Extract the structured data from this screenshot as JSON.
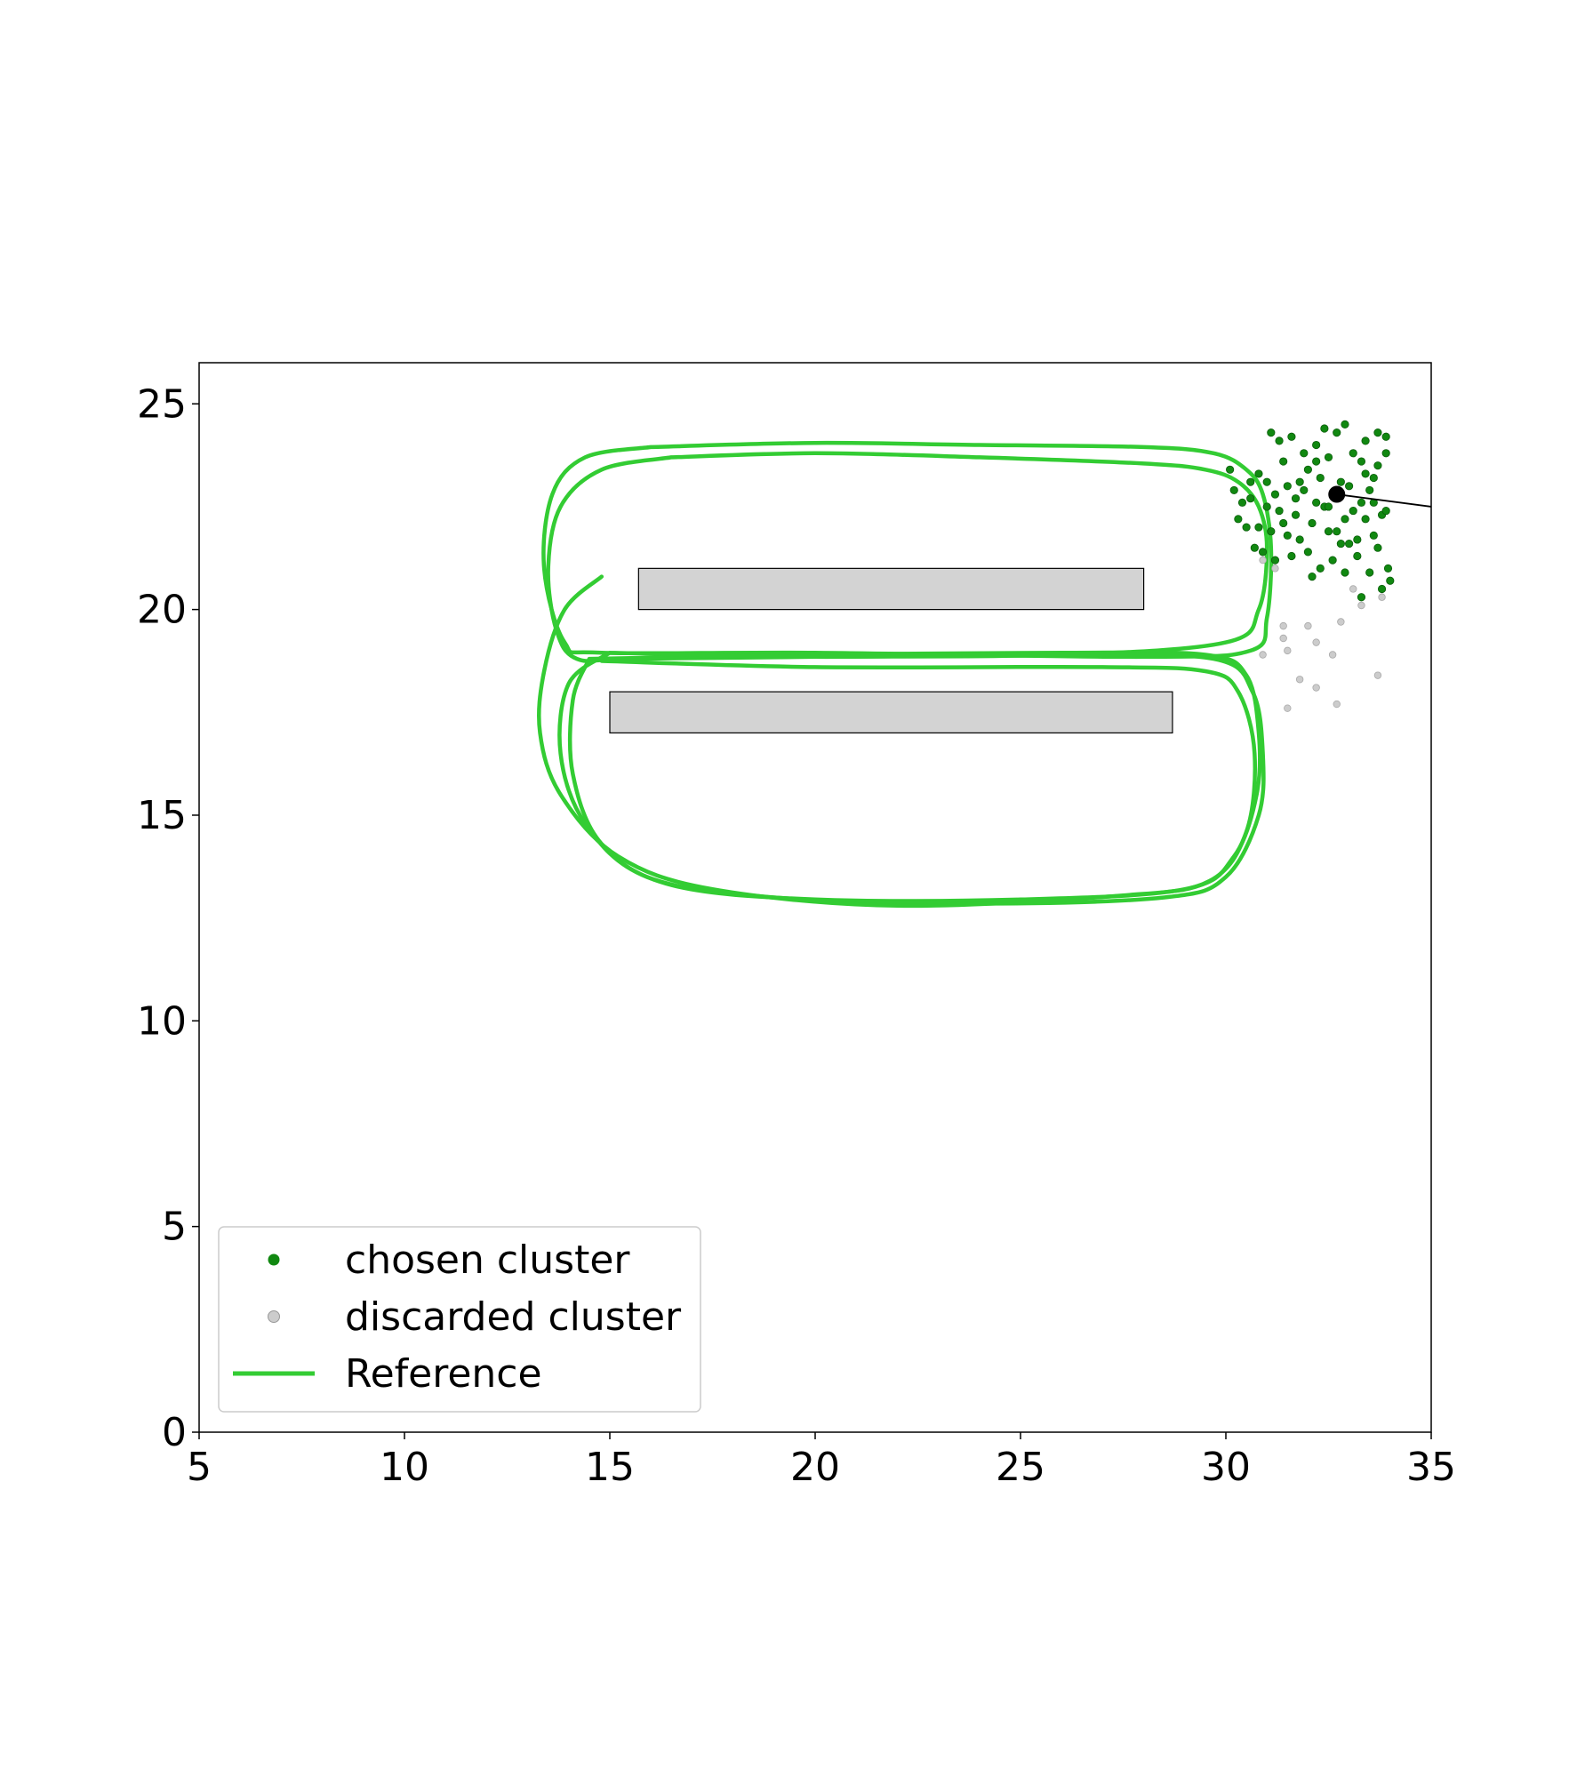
{
  "chart_data": {
    "type": "scatter",
    "title": "",
    "xlabel": "",
    "ylabel": "",
    "xlim": [
      5,
      35
    ],
    "ylim": [
      0,
      26
    ],
    "grid": false,
    "legend_placement": "lower-left",
    "x_ticks": [
      {
        "value": 5,
        "label": "5"
      },
      {
        "value": 10,
        "label": "10"
      },
      {
        "value": 15,
        "label": "15"
      },
      {
        "value": 20,
        "label": "20"
      },
      {
        "value": 25,
        "label": "25"
      },
      {
        "value": 30,
        "label": "30"
      },
      {
        "value": 35,
        "label": "35"
      }
    ],
    "y_ticks": [
      {
        "value": 0,
        "label": "0"
      },
      {
        "value": 5,
        "label": "5"
      },
      {
        "value": 10,
        "label": "10"
      },
      {
        "value": 15,
        "label": "15"
      },
      {
        "value": 20,
        "label": "20"
      },
      {
        "value": 25,
        "label": "25"
      }
    ],
    "obstacles": [
      {
        "x0": 15.7,
        "x1": 28.0,
        "y0": 20.0,
        "y1": 21.0,
        "color": "#d3d3d3"
      },
      {
        "x0": 15.0,
        "x1": 28.7,
        "y0": 17.0,
        "y1": 18.0,
        "color": "#d3d3d3"
      }
    ],
    "legend": [
      {
        "label": "chosen cluster",
        "marker": "dot",
        "color": "#118811"
      },
      {
        "label": "discarded cluster",
        "marker": "dot",
        "color": "#cccccc"
      },
      {
        "label": "Reference",
        "marker": "line",
        "color": "#33cc33"
      }
    ],
    "series": [
      {
        "name": "Reference",
        "kind": "line",
        "color": "#33cc33",
        "laps": [
          [
            [
              16.5,
              23.7
            ],
            [
              20,
              23.8
            ],
            [
              24,
              23.7
            ],
            [
              28,
              23.55
            ],
            [
              29.5,
              23.4
            ],
            [
              30.3,
              23.1
            ],
            [
              30.8,
              22.5
            ],
            [
              31.0,
              21.5
            ],
            [
              30.8,
              20.0
            ],
            [
              30.0,
              19.2
            ],
            [
              26,
              18.9
            ],
            [
              20,
              18.85
            ],
            [
              15.5,
              18.8
            ],
            [
              14.2,
              18.8
            ],
            [
              13.7,
              19.5
            ],
            [
              13.5,
              21.0
            ],
            [
              13.8,
              22.5
            ],
            [
              14.8,
              23.4
            ],
            [
              16.5,
              23.7
            ]
          ],
          [
            [
              16,
              23.95
            ],
            [
              20,
              24.05
            ],
            [
              24,
              24.0
            ],
            [
              28,
              23.95
            ],
            [
              29.7,
              23.8
            ],
            [
              30.5,
              23.4
            ],
            [
              30.9,
              22.8
            ],
            [
              31.1,
              21.5
            ],
            [
              31.0,
              19.8
            ],
            [
              30.6,
              19.0
            ],
            [
              28,
              18.85
            ],
            [
              20,
              18.95
            ],
            [
              14.8,
              18.95
            ],
            [
              13.9,
              19.2
            ],
            [
              13.4,
              21.0
            ],
            [
              13.6,
              22.8
            ],
            [
              14.4,
              23.7
            ],
            [
              16,
              23.95
            ]
          ],
          [
            [
              14.5,
              18.8
            ],
            [
              20,
              18.9
            ],
            [
              26,
              18.95
            ],
            [
              29.5,
              18.9
            ],
            [
              30.5,
              18.4
            ],
            [
              30.8,
              17.0
            ],
            [
              30.75,
              15.5
            ],
            [
              30.2,
              14.0
            ],
            [
              29.0,
              13.2
            ],
            [
              25,
              12.95
            ],
            [
              20,
              12.95
            ],
            [
              16.5,
              13.3
            ],
            [
              14.8,
              14.3
            ],
            [
              14.1,
              16.0
            ],
            [
              14.1,
              17.8
            ],
            [
              14.5,
              18.8
            ]
          ],
          [
            [
              15,
              18.95
            ],
            [
              20,
              18.85
            ],
            [
              26,
              18.9
            ],
            [
              29.7,
              18.8
            ],
            [
              30.65,
              18.0
            ],
            [
              30.9,
              16.5
            ],
            [
              30.8,
              15.0
            ],
            [
              30.0,
              13.5
            ],
            [
              28.5,
              13.0
            ],
            [
              24,
              12.85
            ],
            [
              19,
              13.0
            ],
            [
              15.9,
              13.5
            ],
            [
              14.4,
              14.8
            ],
            [
              13.8,
              16.5
            ],
            [
              14.0,
              18.2
            ],
            [
              15,
              18.95
            ]
          ],
          [
            [
              14.8,
              18.75
            ],
            [
              20,
              18.6
            ],
            [
              27,
              18.6
            ],
            [
              29.5,
              18.5
            ],
            [
              30.3,
              18.0
            ],
            [
              30.7,
              16.5
            ],
            [
              30.5,
              14.6
            ],
            [
              29.6,
              13.4
            ],
            [
              27.5,
              13.05
            ],
            [
              22,
              12.8
            ],
            [
              17.5,
              13.2
            ],
            [
              15.2,
              14.0
            ],
            [
              13.8,
              15.5
            ],
            [
              13.3,
              17.0
            ],
            [
              13.4,
              18.5
            ],
            [
              13.9,
              20.0
            ],
            [
              14.8,
              20.8
            ]
          ]
        ]
      },
      {
        "name": "chosen cluster",
        "kind": "points",
        "color": "#118811",
        "points": [
          [
            30.1,
            23.4
          ],
          [
            30.2,
            22.9
          ],
          [
            30.4,
            22.6
          ],
          [
            30.3,
            22.2
          ],
          [
            30.6,
            22.7
          ],
          [
            30.8,
            23.3
          ],
          [
            31.0,
            22.5
          ],
          [
            31.2,
            22.8
          ],
          [
            31.1,
            21.9
          ],
          [
            31.3,
            22.4
          ],
          [
            31.5,
            23.0
          ],
          [
            31.4,
            23.6
          ],
          [
            31.6,
            24.2
          ],
          [
            31.7,
            22.3
          ],
          [
            31.8,
            21.7
          ],
          [
            31.9,
            22.9
          ],
          [
            32.0,
            23.4
          ],
          [
            32.1,
            22.1
          ],
          [
            32.2,
            24.0
          ],
          [
            32.3,
            23.2
          ],
          [
            32.4,
            22.5
          ],
          [
            32.5,
            21.9
          ],
          [
            32.5,
            23.7
          ],
          [
            32.6,
            22.8
          ],
          [
            32.7,
            24.3
          ],
          [
            32.8,
            21.6
          ],
          [
            32.9,
            22.2
          ],
          [
            33.0,
            23.0
          ],
          [
            33.1,
            23.8
          ],
          [
            33.2,
            21.3
          ],
          [
            33.3,
            22.6
          ],
          [
            33.4,
            24.1
          ],
          [
            33.5,
            22.9
          ],
          [
            33.6,
            21.8
          ],
          [
            33.7,
            23.5
          ],
          [
            33.8,
            22.3
          ],
          [
            33.9,
            24.2
          ],
          [
            33.95,
            21.0
          ],
          [
            33.7,
            24.3
          ],
          [
            33.4,
            23.3
          ],
          [
            33.1,
            22.4
          ],
          [
            32.8,
            23.1
          ],
          [
            32.6,
            21.2
          ],
          [
            32.3,
            21.0
          ],
          [
            32.0,
            21.4
          ],
          [
            31.7,
            22.7
          ],
          [
            31.5,
            21.8
          ],
          [
            31.2,
            21.2
          ],
          [
            30.9,
            21.4
          ],
          [
            30.6,
            23.1
          ],
          [
            31.3,
            24.1
          ],
          [
            31.9,
            23.8
          ],
          [
            32.4,
            24.4
          ],
          [
            32.9,
            24.5
          ],
          [
            33.3,
            23.6
          ],
          [
            33.6,
            22.6
          ],
          [
            33.9,
            23.8
          ],
          [
            34.0,
            20.7
          ],
          [
            33.8,
            20.5
          ],
          [
            33.5,
            20.9
          ],
          [
            33.2,
            21.7
          ],
          [
            32.7,
            21.9
          ],
          [
            32.2,
            22.6
          ],
          [
            31.8,
            23.1
          ],
          [
            31.4,
            22.1
          ],
          [
            31.0,
            23.1
          ],
          [
            30.5,
            22.0
          ],
          [
            30.7,
            21.5
          ],
          [
            31.6,
            21.3
          ],
          [
            32.1,
            20.8
          ],
          [
            32.9,
            20.9
          ],
          [
            33.3,
            20.3
          ],
          [
            33.0,
            21.6
          ],
          [
            32.5,
            22.5
          ],
          [
            32.2,
            23.6
          ],
          [
            33.6,
            23.2
          ],
          [
            33.9,
            22.4
          ],
          [
            33.7,
            21.5
          ],
          [
            33.4,
            22.2
          ],
          [
            31.1,
            24.3
          ],
          [
            30.8,
            22.0
          ]
        ]
      },
      {
        "name": "discarded cluster",
        "kind": "points",
        "color": "#cccccc",
        "points": [
          [
            30.9,
            21.2
          ],
          [
            31.2,
            21.0
          ],
          [
            31.4,
            19.6
          ],
          [
            31.4,
            19.3
          ],
          [
            31.5,
            19.0
          ],
          [
            30.9,
            18.9
          ],
          [
            31.8,
            18.3
          ],
          [
            31.5,
            17.6
          ],
          [
            32.0,
            19.6
          ],
          [
            32.2,
            18.1
          ],
          [
            32.2,
            19.2
          ],
          [
            32.6,
            18.9
          ],
          [
            32.7,
            17.7
          ],
          [
            32.8,
            19.7
          ],
          [
            33.1,
            20.5
          ],
          [
            33.3,
            20.1
          ],
          [
            33.7,
            18.4
          ],
          [
            33.8,
            20.3
          ]
        ]
      },
      {
        "name": "current position",
        "kind": "marker",
        "color": "#000000",
        "point": [
          32.7,
          22.8
        ],
        "heading_to": [
          35.0,
          22.5
        ]
      }
    ]
  }
}
